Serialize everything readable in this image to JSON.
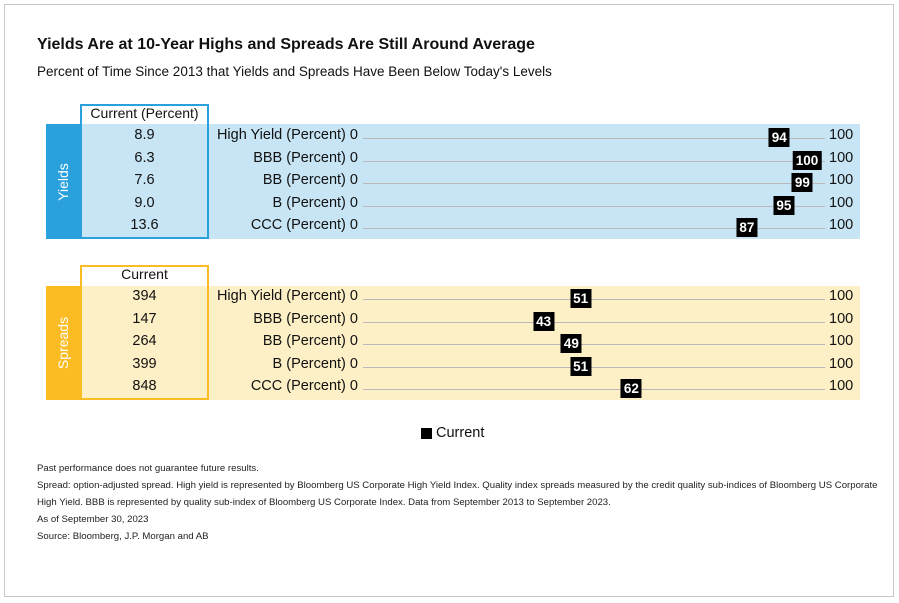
{
  "title": "Yields Are at 10-Year Highs and Spreads Are Still Around Average",
  "subtitle": "Percent of Time Since 2013 that Yields and Spreads Have Been Below Today's Levels",
  "colors": {
    "yields_fill": "#c7e5f5",
    "yields_accent": "#2aa0dc",
    "spreads_fill": "#fdefc6",
    "spreads_accent": "#fbbc23"
  },
  "legend": {
    "label": "Current"
  },
  "chart_data": [
    {
      "type": "bar",
      "section": "Yields",
      "current_header": "Current (Percent)",
      "categories": [
        "High Yield (Percent)",
        "BBB (Percent)",
        "BB (Percent)",
        "B (Percent)",
        "CCC (Percent)"
      ],
      "current": [
        "8.9",
        "6.3",
        "7.6",
        "9.0",
        "13.6"
      ],
      "values": [
        94,
        100,
        99,
        95,
        87
      ],
      "min_label": "0",
      "max_label": "100",
      "xlim": [
        0,
        100
      ]
    },
    {
      "type": "bar",
      "section": "Spreads",
      "current_header": "Current",
      "categories": [
        "High Yield (Percent)",
        "BBB (Percent)",
        "BB (Percent)",
        "B (Percent)",
        "CCC (Percent)"
      ],
      "current": [
        "394",
        "147",
        "264",
        "399",
        "848"
      ],
      "values": [
        51,
        43,
        49,
        51,
        62
      ],
      "min_label": "0",
      "max_label": "100",
      "xlim": [
        0,
        100
      ]
    }
  ],
  "notes": [
    "Past performance does not guarantee future results.",
    "Spread: option-adjusted spread. High yield is represented by Bloomberg US Corporate High Yield Index. Quality index spreads measured by the credit quality sub-indices of Bloomberg US Corporate",
    "High Yield. BBB is represented by quality sub-index of Bloomberg US Corporate Index. Data from September 2013 to September 2023.",
    "As of September 30, 2023",
    "Source: Bloomberg, J.P. Morgan and AB"
  ]
}
